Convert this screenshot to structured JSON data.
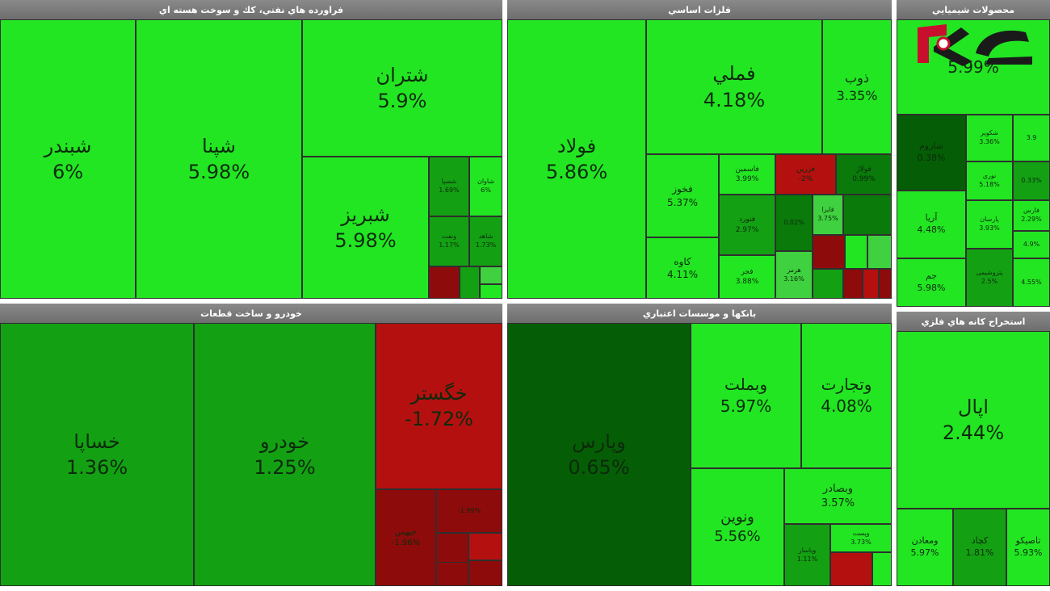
{
  "chart_data": {
    "type": "treemap",
    "colors": {
      "bright_green": "#22e622",
      "light_green": "#3fd13f",
      "mid_green": "#13a113",
      "dark_green": "#0a7a0a",
      "darkest_green": "#055e05",
      "red": "#b51010",
      "dark_red": "#8e0b0b"
    },
    "sectors": [
      {
        "title": "فراورده هاي نفتي، كك و سوخت هسته اي",
        "tiles": [
          {
            "symbol": "شبندر",
            "change": "6%",
            "value": 6
          },
          {
            "symbol": "شپنا",
            "change": "5.98%",
            "value": 5.98
          },
          {
            "symbol": "شتران",
            "change": "5.9%",
            "value": 5.9
          },
          {
            "symbol": "شبریز",
            "change": "5.98%",
            "value": 5.98
          },
          {
            "symbol": "شسپا",
            "change": "1.69%",
            "value": 1.69
          },
          {
            "symbol": "شاوان",
            "change": "6%",
            "value": 6
          },
          {
            "symbol": "ونفت",
            "change": "1.17%",
            "value": 1.17
          },
          {
            "symbol": "شاهد",
            "change": "1.73%",
            "value": 1.73
          },
          {
            "symbol": "",
            "change": "",
            "value": null
          },
          {
            "symbol": "",
            "change": "",
            "value": null
          },
          {
            "symbol": "",
            "change": "",
            "value": null
          },
          {
            "symbol": "",
            "change": "",
            "value": null
          }
        ]
      },
      {
        "title": "فلزات اساسي",
        "tiles": [
          {
            "symbol": "فولاد",
            "change": "5.86%",
            "value": 5.86
          },
          {
            "symbol": "فملي",
            "change": "4.18%",
            "value": 4.18
          },
          {
            "symbol": "ذوب",
            "change": "3.35%",
            "value": 3.35
          },
          {
            "symbol": "فخوز",
            "change": "5.37%",
            "value": 5.37
          },
          {
            "symbol": "کاوه",
            "change": "4.11%",
            "value": 4.11
          },
          {
            "symbol": "فاسمین",
            "change": "3.99%",
            "value": 3.99
          },
          {
            "symbol": "فنورد",
            "change": "2.97%",
            "value": 2.97
          },
          {
            "symbol": "فجر",
            "change": "3.88%",
            "value": 3.88
          },
          {
            "symbol": "فزرین",
            "change": "-2%",
            "value": -2
          },
          {
            "symbol": "فولاژ",
            "change": "0.99%",
            "value": 0.99
          },
          {
            "symbol": "",
            "change": "0.02%",
            "value": 0.02
          },
          {
            "symbol": "فایرا",
            "change": "3.75%",
            "value": 3.75
          },
          {
            "symbol": "هرمز",
            "change": "3.16%",
            "value": 3.16
          },
          {
            "symbol": "",
            "change": "",
            "value": null
          },
          {
            "symbol": "",
            "change": "",
            "value": null
          },
          {
            "symbol": "",
            "change": "",
            "value": null
          },
          {
            "symbol": "",
            "change": "",
            "value": null
          },
          {
            "symbol": "",
            "change": "",
            "value": null
          },
          {
            "symbol": "",
            "change": "",
            "value": null
          },
          {
            "symbol": "",
            "change": "",
            "value": null
          },
          {
            "symbol": "",
            "change": "",
            "value": null
          }
        ]
      },
      {
        "title": "محصولات شيميايي",
        "tiles": [
          {
            "symbol": "",
            "change": "5.99%",
            "value": 5.99
          },
          {
            "symbol": "شاروم",
            "change": "0.38%",
            "value": 0.38
          },
          {
            "symbol": "شکویر",
            "change": "3.36%",
            "value": 3.36
          },
          {
            "symbol": "",
            "change": "3.9",
            "value": null
          },
          {
            "symbol": "نوري",
            "change": "5.18%",
            "value": 5.18
          },
          {
            "symbol": "",
            "change": "0.33%",
            "value": 0.33
          },
          {
            "symbol": "آریا",
            "change": "4.48%",
            "value": 4.48
          },
          {
            "symbol": "پارسان",
            "change": "3.93%",
            "value": 3.93
          },
          {
            "symbol": "فارس",
            "change": "2.29%",
            "value": 2.29
          },
          {
            "symbol": "",
            "change": "4.9%",
            "value": 4.9
          },
          {
            "symbol": "جم",
            "change": "5.98%",
            "value": 5.98
          },
          {
            "symbol": "پتروشیمی",
            "change": "2.5%",
            "value": 2.5
          },
          {
            "symbol": "",
            "change": "4.55%",
            "value": 4.55
          }
        ]
      },
      {
        "title": "خودرو و ساخت قطعات",
        "tiles": [
          {
            "symbol": "خساپا",
            "change": "1.36%",
            "value": 1.36
          },
          {
            "symbol": "خودرو",
            "change": "1.25%",
            "value": 1.25
          },
          {
            "symbol": "خگستر",
            "change": "-1.72%",
            "value": -1.72
          },
          {
            "symbol": "خبهمن",
            "change": "-1.96%",
            "value": -1.96
          },
          {
            "symbol": "",
            "change": "-1.99%",
            "value": -1.99
          },
          {
            "symbol": "",
            "change": "",
            "value": null
          },
          {
            "symbol": "",
            "change": "",
            "value": null
          },
          {
            "symbol": "",
            "change": "",
            "value": null
          },
          {
            "symbol": "",
            "change": "",
            "value": null
          }
        ]
      },
      {
        "title": "بانكها و موسسات اعتباري",
        "tiles": [
          {
            "symbol": "وپارس",
            "change": "0.65%",
            "value": 0.65
          },
          {
            "symbol": "وبملت",
            "change": "5.97%",
            "value": 5.97
          },
          {
            "symbol": "وتجارت",
            "change": "4.08%",
            "value": 4.08
          },
          {
            "symbol": "وبصادر",
            "change": "3.57%",
            "value": 3.57
          },
          {
            "symbol": "ونوين",
            "change": "5.56%",
            "value": 5.56
          },
          {
            "symbol": "وپاسار",
            "change": "1.11%",
            "value": 1.11
          },
          {
            "symbol": "وپست",
            "change": "3.73%",
            "value": 3.73
          },
          {
            "symbol": "",
            "change": "",
            "value": null
          },
          {
            "symbol": "",
            "change": "",
            "value": null
          }
        ]
      },
      {
        "title": "استخراج كانه هاي فلزي",
        "tiles": [
          {
            "symbol": "اپال",
            "change": "2.44%",
            "value": 2.44
          },
          {
            "symbol": "ومعادن",
            "change": "5.97%",
            "value": 5.97
          },
          {
            "symbol": "کچاد",
            "change": "1.81%",
            "value": 1.81
          },
          {
            "symbol": "تاصیکو",
            "change": "5.93%",
            "value": 5.93
          }
        ]
      }
    ]
  },
  "logo": {
    "icon": "rokna-logo"
  }
}
